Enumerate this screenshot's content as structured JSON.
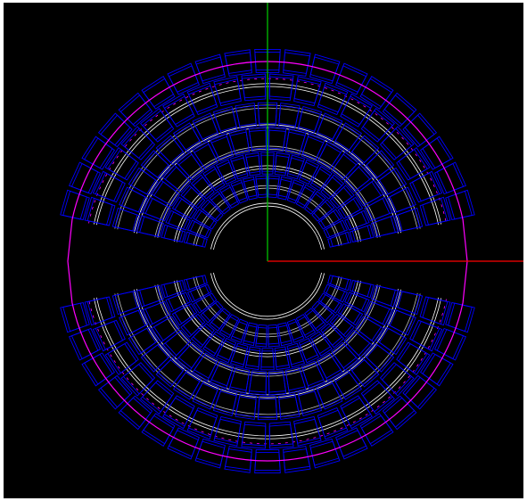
{
  "viewport": {
    "background": "#000000",
    "frame_color": "#ffffff"
  },
  "axes": {
    "x_axis_color": "#ff0000",
    "y_axis_color": "#00c000"
  },
  "geometry": {
    "outer_boundary_color": "#ff00ff",
    "module_color": "#0000ff",
    "inner_ring_color": "#ffffff",
    "upper_half_modules": 18,
    "lower_half_modules": 18,
    "layers": 5
  }
}
